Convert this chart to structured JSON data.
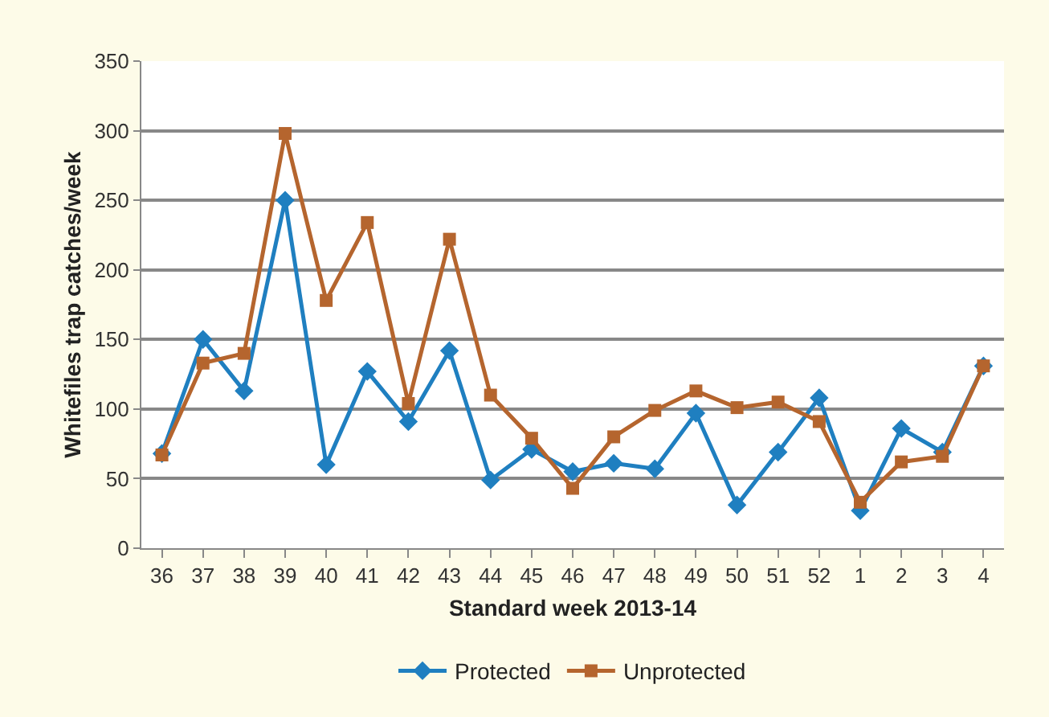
{
  "chart_data": {
    "type": "line",
    "xlabel": "Standard week 2013-14",
    "ylabel": "Whitefiles trap catches/week",
    "categories": [
      "36",
      "37",
      "38",
      "39",
      "40",
      "41",
      "42",
      "43",
      "44",
      "45",
      "46",
      "47",
      "48",
      "49",
      "50",
      "51",
      "52",
      "1",
      "2",
      "3",
      "4"
    ],
    "series": [
      {
        "name": "Protected",
        "color": "#1f7fc0",
        "marker": "diamond",
        "values": [
          68,
          150,
          113,
          250,
          60,
          127,
          91,
          142,
          49,
          71,
          55,
          61,
          57,
          97,
          31,
          69,
          108,
          27,
          86,
          69,
          131
        ]
      },
      {
        "name": "Unprotected",
        "color": "#b5652e",
        "marker": "square",
        "values": [
          67,
          133,
          140,
          298,
          178,
          234,
          104,
          222,
          110,
          79,
          43,
          80,
          99,
          113,
          101,
          105,
          91,
          33,
          62,
          66,
          131
        ]
      }
    ],
    "ylim": [
      0,
      350
    ],
    "yticks": [
      0,
      50,
      100,
      150,
      200,
      250,
      300,
      350
    ],
    "grid": "y",
    "legend": "bottom",
    "line_style": "solid"
  }
}
